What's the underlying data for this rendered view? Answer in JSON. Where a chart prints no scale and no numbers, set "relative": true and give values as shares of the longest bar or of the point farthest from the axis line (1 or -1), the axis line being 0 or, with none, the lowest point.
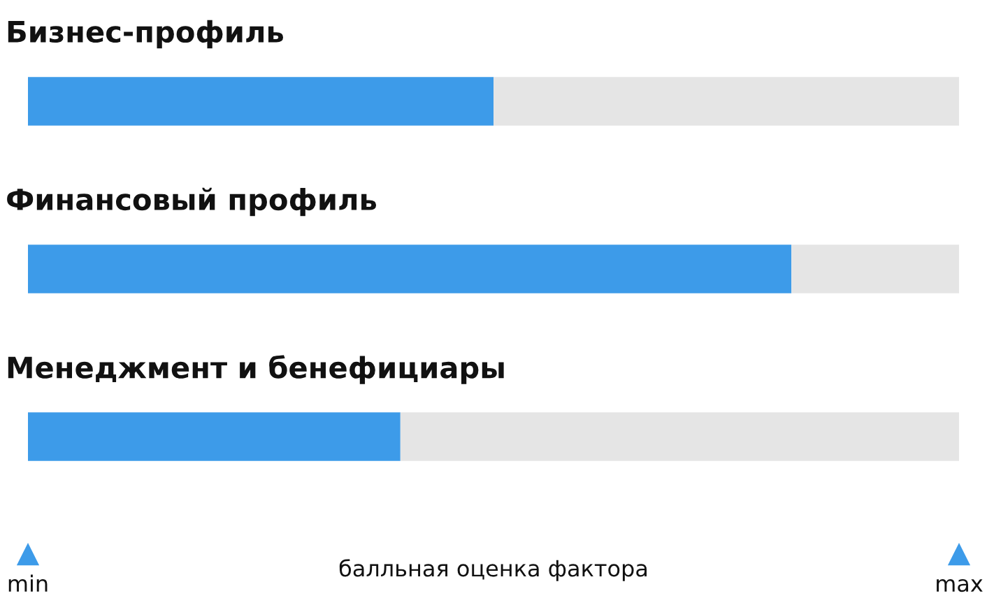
{
  "chart_data": {
    "type": "bar",
    "orientation": "horizontal",
    "relative": true,
    "stacked": true,
    "categories": [
      "Бизнес-профиль",
      "Финансовый профиль",
      "Менеджмент и бенефициары"
    ],
    "series": [
      {
        "color": "#3d9be9",
        "values": [
          0.5,
          0.82,
          0.4
        ]
      },
      {
        "color": "#e5e5e5",
        "values": [
          0.5,
          0.18,
          0.6
        ]
      }
    ],
    "annotations": [
      "min",
      "max"
    ],
    "xlabel": "балльная оценка фактора",
    "legend": false
  }
}
